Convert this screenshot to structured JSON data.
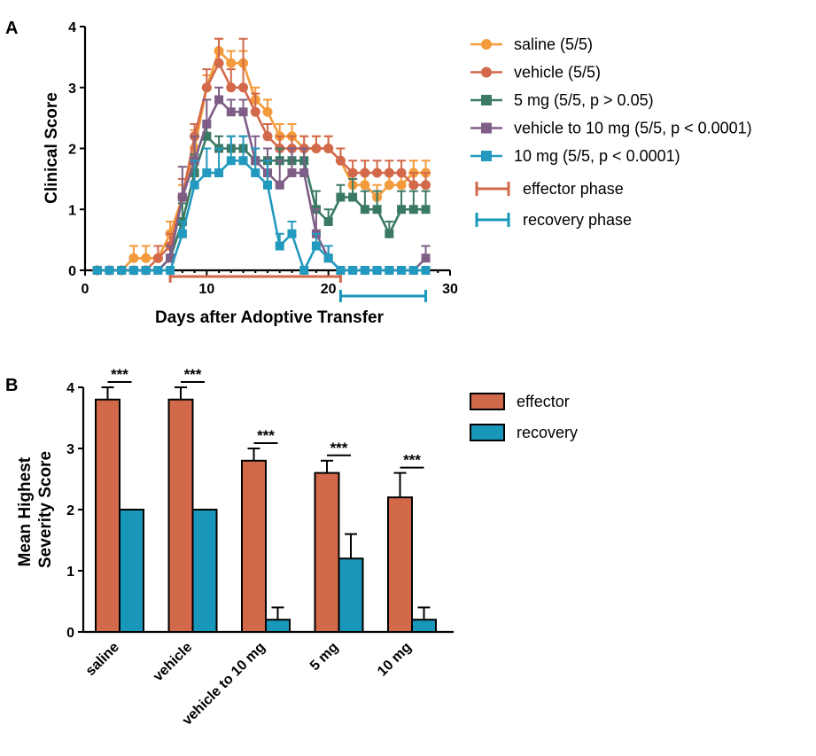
{
  "colors": {
    "saline": "#F39A3A",
    "vehicle": "#D2694A",
    "5mg": "#3A7A64",
    "vehicle10": "#7E5E86",
    "10mg": "#2299BE",
    "effector": "#D2694A",
    "recovery": "#1997BA"
  },
  "chart_data": [
    {
      "panel": "A",
      "type": "line",
      "xlabel": "Days after Adoptive Transfer",
      "ylabel": "Clinical Score",
      "xlim": [
        0,
        30
      ],
      "ylim": [
        0,
        4
      ],
      "xticks": [
        "0",
        "10",
        "20",
        "30"
      ],
      "yticks": [
        "0",
        "1",
        "2",
        "3",
        "4"
      ],
      "legend_position": "right",
      "x": [
        1,
        2,
        3,
        4,
        5,
        6,
        7,
        8,
        9,
        10,
        11,
        12,
        13,
        14,
        15,
        16,
        17,
        18,
        19,
        20,
        21,
        22,
        23,
        24,
        25,
        26,
        27,
        28
      ],
      "series": [
        {
          "name": "saline (5/5)",
          "color_key": "saline",
          "marker": "circle",
          "values": [
            0,
            0,
            0,
            0.2,
            0.2,
            0.2,
            0.6,
            1.2,
            2.0,
            3.0,
            3.6,
            3.4,
            3.4,
            2.8,
            2.6,
            2.2,
            2.2,
            2.0,
            2.0,
            2.0,
            1.8,
            1.4,
            1.4,
            1.2,
            1.4,
            1.4,
            1.6,
            1.6
          ],
          "errors": [
            0,
            0,
            0,
            0.2,
            0.2,
            0.2,
            0.2,
            0.2,
            0.3,
            0.2,
            0.2,
            0.2,
            0.2,
            0.2,
            0.2,
            0.2,
            0.2,
            0.2,
            0.2,
            0.2,
            0.2,
            0.2,
            0.2,
            0.2,
            0.2,
            0.2,
            0.2,
            0.2
          ]
        },
        {
          "name": "vehicle (5/5)",
          "color_key": "vehicle",
          "marker": "circle",
          "values": [
            0,
            0,
            0,
            0,
            0,
            0.2,
            0.4,
            1.2,
            2.2,
            3.0,
            3.4,
            3.0,
            3.0,
            2.6,
            2.2,
            2.0,
            2.0,
            2.0,
            2.0,
            2.0,
            1.8,
            1.6,
            1.6,
            1.6,
            1.6,
            1.6,
            1.4,
            1.4
          ],
          "errors": [
            0,
            0,
            0,
            0,
            0,
            0.2,
            0.2,
            0.3,
            0.2,
            0.3,
            0.4,
            0.3,
            0.8,
            0.3,
            0.2,
            0.2,
            0.2,
            0.2,
            0.2,
            0.2,
            0.2,
            0.2,
            0.2,
            0.2,
            0.2,
            0.2,
            0.2,
            0.2
          ]
        },
        {
          "name": "5 mg (5/5, p > 0.05)",
          "color_key": "5mg",
          "marker": "square",
          "values": [
            0,
            0,
            0,
            0,
            0,
            0,
            0.2,
            0.8,
            1.6,
            2.2,
            2.0,
            2.0,
            2.0,
            1.8,
            1.8,
            1.8,
            1.8,
            1.8,
            1.0,
            0.8,
            1.2,
            1.2,
            1.0,
            1.0,
            0.6,
            1.0,
            1.0,
            1.0
          ],
          "errors": [
            0,
            0,
            0,
            0,
            0,
            0,
            0.2,
            0.3,
            0.3,
            0.2,
            0.2,
            0.2,
            0.2,
            0.2,
            0.2,
            0.2,
            0.2,
            0.2,
            0.3,
            0.2,
            0.2,
            0.3,
            0.3,
            0.3,
            0.2,
            0.3,
            0.3,
            0.3
          ]
        },
        {
          "name": "vehicle to 10 mg (5/5, p < 0.0001)",
          "color_key": "vehicle10",
          "marker": "square",
          "values": [
            0,
            0,
            0,
            0,
            0,
            0,
            0.2,
            1.2,
            1.8,
            2.4,
            2.8,
            2.6,
            2.6,
            1.8,
            1.6,
            1.4,
            1.6,
            1.6,
            0.6,
            0.2,
            0,
            0,
            0,
            0,
            0,
            0,
            0,
            0.2
          ],
          "errors": [
            0,
            0,
            0,
            0,
            0,
            0,
            0.2,
            0.5,
            0.4,
            0.4,
            0.2,
            0.2,
            0.2,
            0.4,
            0.4,
            0.4,
            0.4,
            0.4,
            0.4,
            0.2,
            0,
            0,
            0,
            0,
            0,
            0,
            0,
            0.2
          ]
        },
        {
          "name": "10 mg (5/5, p < 0.0001)",
          "color_key": "10mg",
          "marker": "square",
          "values": [
            0,
            0,
            0,
            0,
            0,
            0,
            0,
            0.6,
            1.4,
            1.6,
            1.6,
            1.8,
            1.8,
            1.6,
            1.4,
            0.4,
            0.6,
            0,
            0.4,
            0.2,
            0,
            0,
            0,
            0,
            0,
            0,
            0,
            0
          ],
          "errors": [
            0,
            0,
            0,
            0,
            0,
            0,
            0,
            0.2,
            0.4,
            0.4,
            0.4,
            0.4,
            0.4,
            0.4,
            0.4,
            0.2,
            0.2,
            0,
            0.2,
            0.2,
            0,
            0,
            0,
            0,
            0,
            0,
            0,
            0
          ]
        }
      ],
      "phases": [
        {
          "name": "effector phase",
          "color_key": "effector",
          "start": 7,
          "end": 21
        },
        {
          "name": "recovery phase",
          "color_key": "recovery",
          "start": 21,
          "end": 28
        }
      ]
    },
    {
      "panel": "B",
      "type": "bar",
      "ylabel": "Mean Highest Severity Score",
      "ylabel_lines": [
        "Mean Highest",
        "Severity Score"
      ],
      "ylim": [
        0,
        4
      ],
      "yticks": [
        "0",
        "1",
        "2",
        "3",
        "4"
      ],
      "legend_position": "right",
      "categories": [
        "saline",
        "vehicle",
        "vehicle to 10 mg",
        "5 mg",
        "10 mg"
      ],
      "series": [
        {
          "name": "effector",
          "color_key": "effector",
          "values": [
            3.8,
            3.8,
            2.8,
            2.6,
            2.2
          ],
          "errors": [
            0.2,
            0.2,
            0.2,
            0.2,
            0.4
          ]
        },
        {
          "name": "recovery",
          "color_key": "recovery",
          "values": [
            2.0,
            2.0,
            0.2,
            1.2,
            0.2
          ],
          "errors": [
            0,
            0,
            0.2,
            0.4,
            0.2
          ]
        }
      ],
      "significance": [
        "***",
        "***",
        "***",
        "***",
        "***"
      ]
    }
  ]
}
